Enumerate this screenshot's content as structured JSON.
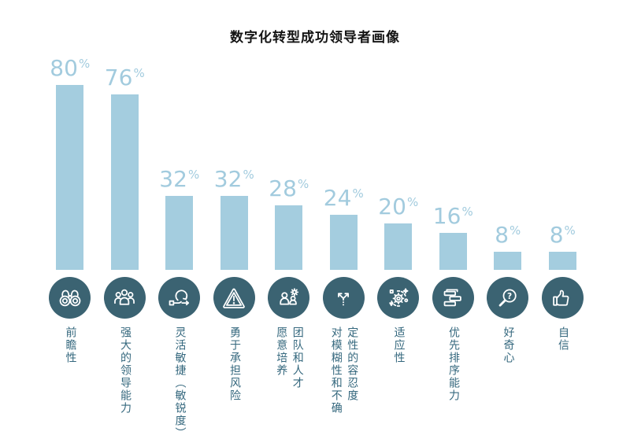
{
  "title": "数字化转型成功领导者画像",
  "colors": {
    "bar": "#a4cddf",
    "value": "#a2cbde",
    "circle": "#3b6372",
    "label": "#35687e",
    "title": "#141414"
  },
  "chart_data": {
    "type": "bar",
    "title": "数字化转型成功领导者画像",
    "categories": [
      "前瞻性",
      "强大的领导能力",
      "灵活敏捷（敏锐度）",
      "勇于承担风险",
      "团队和人才愿意培养",
      "对模糊性和不确定性的容忍度",
      "适应性",
      "优先排序能力",
      "好奇心",
      "自信"
    ],
    "values": [
      80,
      76,
      32,
      32,
      28,
      24,
      20,
      16,
      8,
      8
    ],
    "unit": "%",
    "xlabel": "",
    "ylabel": "",
    "ylim": [
      0,
      100
    ],
    "grid": false,
    "legend": "none",
    "value_labels_position": "above-bar"
  },
  "bars": [
    {
      "value": 80,
      "unit": "%",
      "icon": "binoculars-icon",
      "label": "前瞻性",
      "label_columns": [
        "前瞻性"
      ]
    },
    {
      "value": 76,
      "unit": "%",
      "icon": "team-icon",
      "label": "强大的领导能力",
      "label_columns": [
        "强大的领导能力"
      ]
    },
    {
      "value": 32,
      "unit": "%",
      "icon": "agile-loop-icon",
      "label": "灵活敏捷（敏锐度）",
      "label_columns": [
        "灵活敏捷（敏锐度）"
      ]
    },
    {
      "value": 32,
      "unit": "%",
      "icon": "warning-triangle-icon",
      "label": "勇于承担风险",
      "label_columns": [
        "勇于承担风险"
      ]
    },
    {
      "value": 28,
      "unit": "%",
      "icon": "team-gear-icon",
      "label": "团队和人才愿意培养",
      "label_columns": [
        "愿意培养",
        "团队和人才"
      ]
    },
    {
      "value": 24,
      "unit": "%",
      "icon": "fork-arrows-icon",
      "label": "对模糊性和不确定性的容忍度",
      "label_columns": [
        "对模糊性和不确",
        "定性的容忍度"
      ]
    },
    {
      "value": 20,
      "unit": "%",
      "icon": "adapt-gear-icon",
      "label": "适应性",
      "label_columns": [
        "适应性"
      ]
    },
    {
      "value": 16,
      "unit": "%",
      "icon": "priority-layers-icon",
      "label": "优先排序能力",
      "label_columns": [
        "优先排序能力"
      ]
    },
    {
      "value": 8,
      "unit": "%",
      "icon": "magnifier-question-icon",
      "label": "好奇心",
      "label_columns": [
        "好奇心"
      ]
    },
    {
      "value": 8,
      "unit": "%",
      "icon": "thumbs-up-icon",
      "label": "自信",
      "label_columns": [
        "自信"
      ]
    }
  ]
}
